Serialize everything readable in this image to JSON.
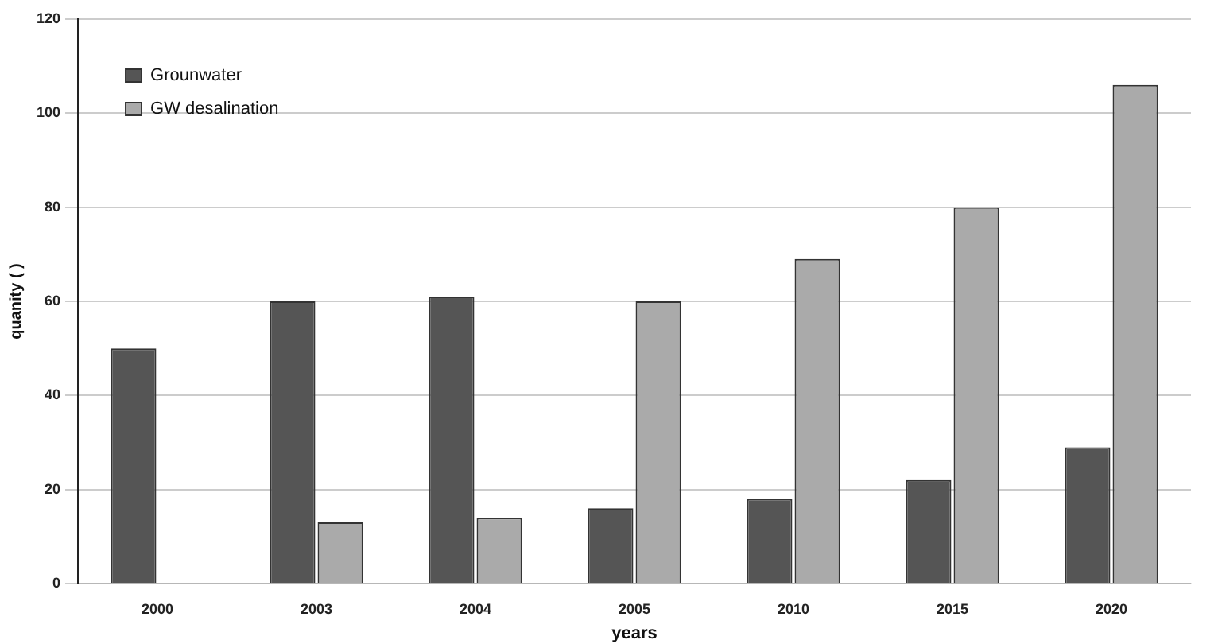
{
  "chart_data": {
    "type": "bar",
    "xlabel": "years",
    "ylabel": "quanity ( )",
    "categories": [
      "2000",
      "2003",
      "2004",
      "2005",
      "2010",
      "2015",
      "2020"
    ],
    "series": [
      {
        "name": "Grounwater",
        "color": "#555555",
        "values": [
          50,
          60,
          61,
          16,
          18,
          22,
          29
        ]
      },
      {
        "name": "GW desalination",
        "color": "#aaaaaa",
        "values": [
          0,
          13,
          14,
          60,
          69,
          80,
          106
        ]
      }
    ],
    "ylim": [
      0,
      120
    ],
    "yticks": [
      0,
      20,
      40,
      60,
      80,
      100,
      120
    ],
    "grid": "y",
    "legend": "top left"
  }
}
